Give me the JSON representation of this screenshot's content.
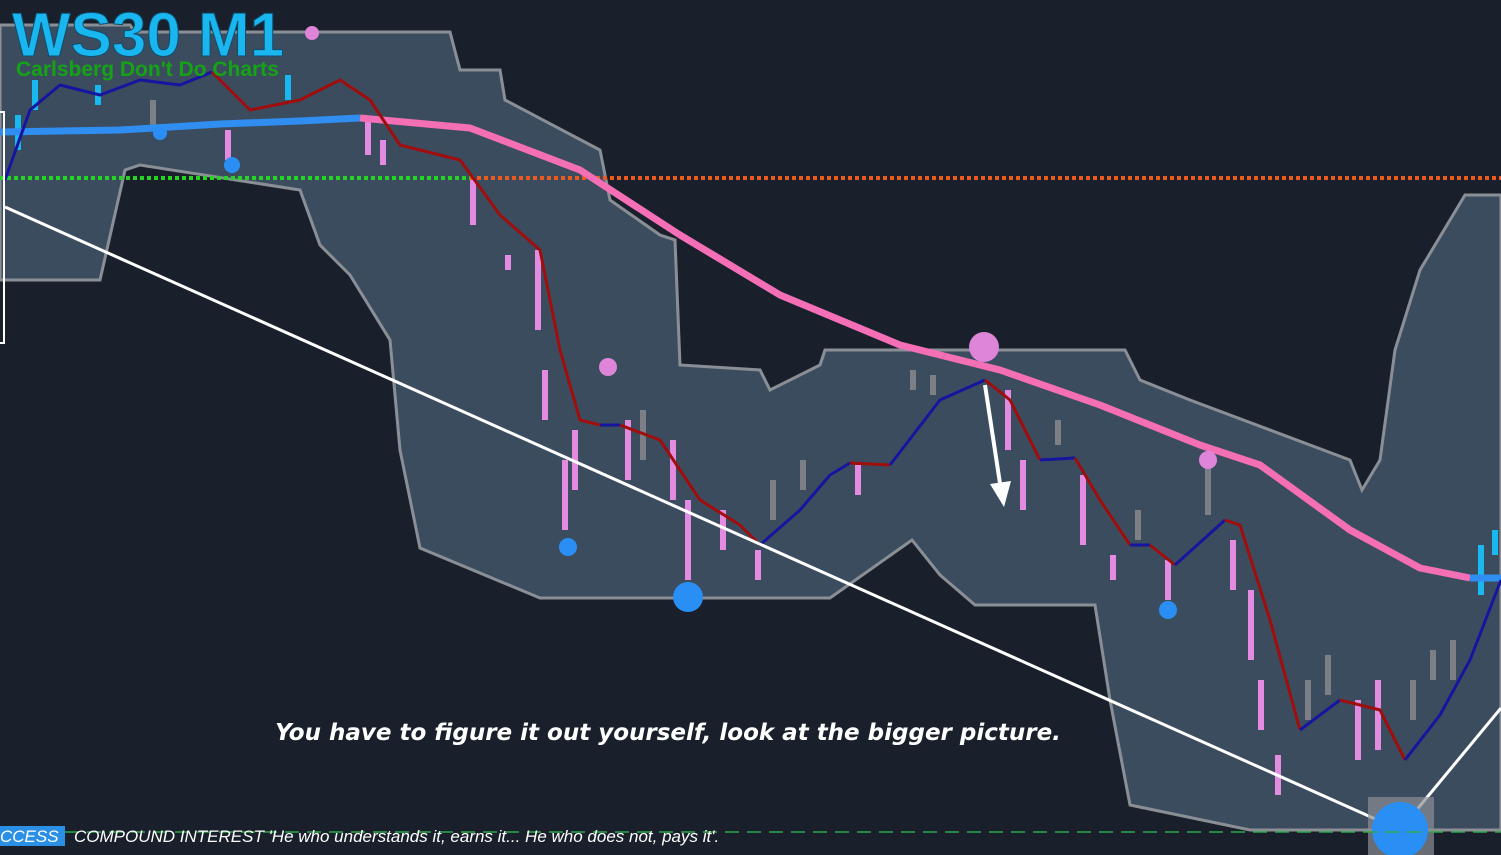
{
  "header": {
    "title": "WS30 M1",
    "subtitle": "Carlsberg Don't Do Charts"
  },
  "annotation": "You have to figure it out yourself, look at the bigger picture.",
  "footer": {
    "badge": "CCESS",
    "ticker": "COMPOUND INTEREST  'He who understands it, earns it... He who does not, pays it'."
  }
}
